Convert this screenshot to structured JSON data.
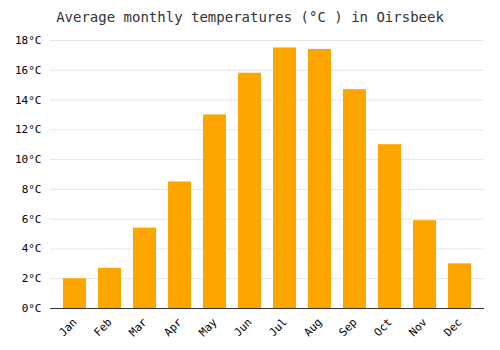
{
  "chart_data": {
    "type": "bar",
    "title": "Average monthly temperatures (°C ) in Oirsbeek",
    "categories": [
      "Jan",
      "Feb",
      "Mar",
      "Apr",
      "May",
      "Jun",
      "Jul",
      "Aug",
      "Sep",
      "Oct",
      "Nov",
      "Dec"
    ],
    "values": [
      2.0,
      2.7,
      5.4,
      8.5,
      13.0,
      15.8,
      17.5,
      17.4,
      14.7,
      11.0,
      5.9,
      3.0
    ],
    "color": "#FFA500",
    "ylim": [
      0,
      18
    ],
    "yticks": [
      {
        "value": 0,
        "label": "0°C"
      },
      {
        "value": 2,
        "label": "2°C"
      },
      {
        "value": 4,
        "label": "4°C"
      },
      {
        "value": 6,
        "label": "6°C"
      },
      {
        "value": 8,
        "label": "8°C"
      },
      {
        "value": 10,
        "label": "10°C"
      },
      {
        "value": 12,
        "label": "12°C"
      },
      {
        "value": 14,
        "label": "14°C"
      },
      {
        "value": 16,
        "label": "16°C"
      },
      {
        "value": 18,
        "label": "18°C"
      }
    ],
    "grid": true
  }
}
